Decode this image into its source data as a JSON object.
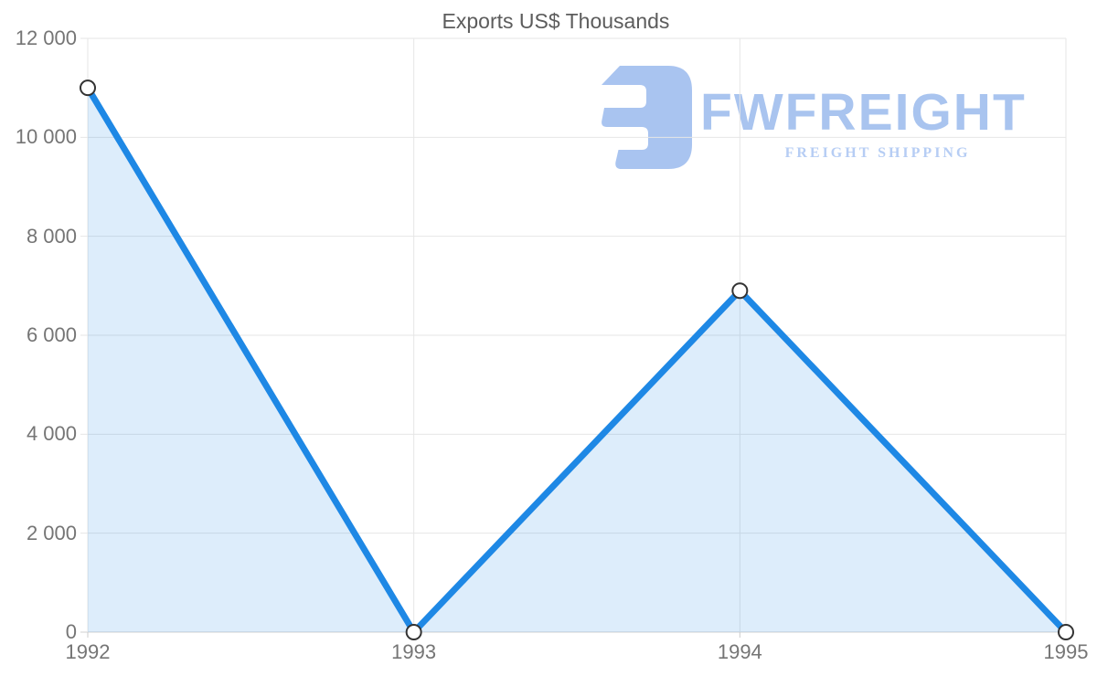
{
  "page": {
    "background": "#ffffff"
  },
  "chart_data": {
    "type": "area",
    "title": "Exports US$ Thousands",
    "categories": [
      "1992",
      "1993",
      "1994",
      "1995"
    ],
    "series": [
      {
        "name": "Exports US$ Thousands",
        "values": [
          11000,
          0,
          6900,
          0
        ]
      }
    ],
    "xlabel": "",
    "ylabel": "",
    "ylim": [
      0,
      12000
    ],
    "ytick_step": 2000,
    "ytick_labels": [
      "0",
      "2 000",
      "4 000",
      "6 000",
      "8 000",
      "10 000",
      "12 000"
    ],
    "grid": true,
    "legend_position": "none",
    "line_color": "#1e88e5",
    "fill_opacity": 0.15,
    "marker_fill": "#ffffff",
    "marker_stroke": "#333333",
    "gridline_color": "#e6e6e6",
    "axis_line_color": "#d0d0d0",
    "tick_color": "#cccccc",
    "tick_label_color": "#757575",
    "title_color": "#5c5c5c"
  },
  "watermark": {
    "brand": "FWFREIGHT",
    "tagline": "FREIGHT SHIPPING",
    "brand_color": "#a9c4ef",
    "tagline_color": "#b6cdf4",
    "glyph_color": "#a9c4f0"
  }
}
